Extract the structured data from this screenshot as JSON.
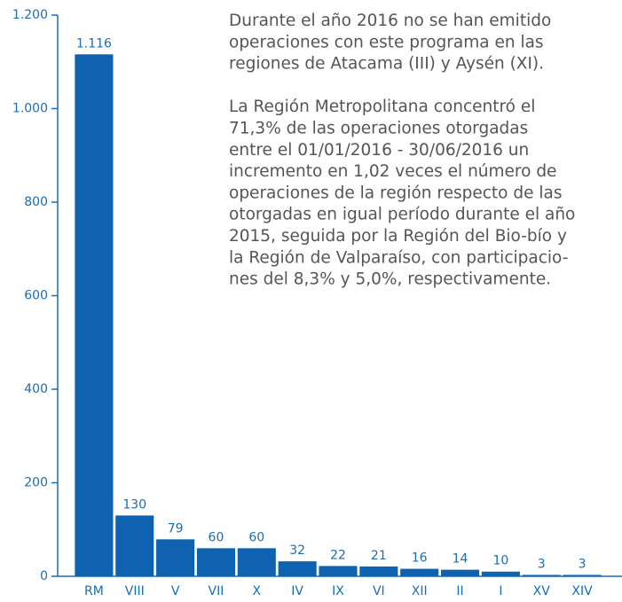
{
  "chart_data": {
    "type": "bar",
    "categories": [
      "RM",
      "VIII",
      "V",
      "VII",
      "X",
      "IV",
      "IX",
      "VI",
      "XII",
      "II",
      "I",
      "XV",
      "XIV"
    ],
    "values": [
      1116,
      130,
      79,
      60,
      60,
      32,
      22,
      21,
      16,
      14,
      10,
      3,
      3
    ],
    "value_labels": [
      "1.116",
      "130",
      "79",
      "60",
      "60",
      "32",
      "22",
      "21",
      "16",
      "14",
      "10",
      "3",
      "3"
    ],
    "color": "#0f62b0",
    "ylim": [
      0,
      1200
    ],
    "yticks": [
      0,
      200,
      400,
      600,
      800,
      {
        "value": 1000,
        "label": "1.000"
      },
      {
        "value": 1200,
        "label": "1.200"
      }
    ],
    "annotations": [
      [
        "Durante el año 2016 no se han emitido",
        "operaciones con este programa en las",
        "regiones de Atacama (III) y Aysén (XI)."
      ],
      [
        "La Región Metropolitana concentró el",
        "71,3% de las operaciones otorgadas",
        "entre el 01/01/2016 - 30/06/2016 un",
        "incremento en 1,02 veces el número de",
        "operaciones de la región respecto de las",
        "otorgadas en igual período durante el año",
        "2015, seguida por la Región del Bio-bío y",
        "la Región de Valparaíso, con participacio-",
        "nes del 8,3% y 5,0%, respectivamente."
      ]
    ]
  }
}
